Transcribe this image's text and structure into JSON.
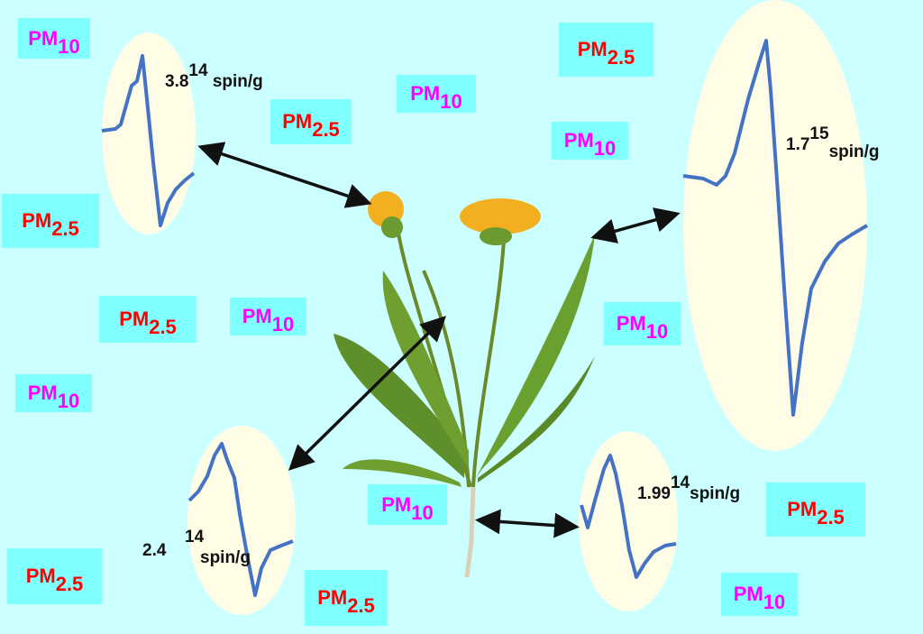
{
  "labels": {
    "pm10": {
      "main": "PM",
      "sub": "10",
      "color": "#ff00ff"
    },
    "pm25": {
      "main": "PM",
      "sub": "2.5",
      "color": "#ff0000"
    }
  },
  "spin_readings": [
    {
      "value": "3.8",
      "exponent": "14",
      "unit": "spin/g"
    },
    {
      "value": "1.7",
      "exponent": "15",
      "unit": "spin/g"
    },
    {
      "value": "2.4",
      "exponent": "14",
      "unit": "spin/g"
    },
    {
      "value": "1.99",
      "exponent": "14",
      "unit": "spin/g"
    }
  ],
  "colors": {
    "background": "#ccffff",
    "label_box": "#80ffff",
    "ellipse": "#fffde6",
    "signal": "#4472c4"
  }
}
